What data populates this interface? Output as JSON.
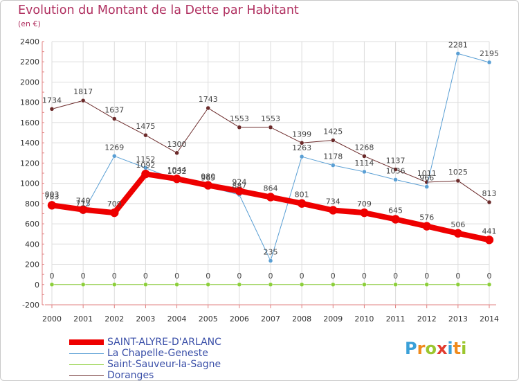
{
  "title": "Evolution du Montant de la Dette par Habitant",
  "subtitle": "(en €)",
  "logo": {
    "text": "Proxiti",
    "colors": [
      "#3aa0d8",
      "#f08a1c",
      "#9bc62e",
      "#e23b2e",
      "#3aa0d8",
      "#f08a1c",
      "#9bc62e"
    ]
  },
  "chart_data": {
    "type": "line",
    "x": [
      "2000",
      "2001",
      "2002",
      "2003",
      "2004",
      "2005",
      "2006",
      "2007",
      "2008",
      "2009",
      "2010",
      "2011",
      "2012",
      "2013",
      "2014"
    ],
    "ylim": [
      -200,
      2400
    ],
    "yticks": [
      -200,
      0,
      200,
      400,
      600,
      800,
      1000,
      1200,
      1400,
      1600,
      1800,
      2000,
      2200,
      2400
    ],
    "ytick_labels": [
      "-200",
      "0",
      "200",
      "400",
      "600",
      "800",
      "1000",
      "1200",
      "1400",
      "1600",
      "1800",
      "2000",
      "2200",
      "2400"
    ],
    "grid": true,
    "legend_position": "bottom-left",
    "series": [
      {
        "name": "Doranges",
        "color": "#6b2a2a",
        "width": 1,
        "marker": 3,
        "values": [
          1734,
          1817,
          1637,
          1475,
          1300,
          1743,
          1553,
          1553,
          1399,
          1425,
          1268,
          1137,
          1011,
          1025,
          813
        ],
        "labels": [
          "1734",
          "1817",
          "1637",
          "1475",
          "1300",
          "1743",
          "1553",
          "1553",
          "1399",
          "1425",
          "1268",
          "1137",
          "1011",
          "1025",
          "813"
        ]
      },
      {
        "name": "La Chapelle-Geneste",
        "color": "#5a9fd4",
        "width": 1,
        "marker": 3,
        "values": [
          803,
          713,
          1269,
          1152,
          1032,
          965,
          887,
          235,
          1263,
          1178,
          1114,
          1036,
          966,
          2281,
          2195
        ],
        "labels": [
          "803",
          "713",
          "1269",
          "1152",
          "1032",
          "965",
          "887",
          "235",
          "1263",
          "1178",
          "1114",
          "1036",
          "966",
          "2281",
          "2195"
        ]
      },
      {
        "name": "Saint-Sauveur-la-Sagne",
        "color": "#8ccf3a",
        "width": 1,
        "marker": 3,
        "values": [
          0,
          0,
          0,
          0,
          0,
          0,
          0,
          0,
          0,
          0,
          0,
          0,
          0,
          0,
          0
        ],
        "labels": [
          "0",
          "0",
          "0",
          "0",
          "0",
          "0",
          "0",
          "0",
          "0",
          "0",
          "0",
          "0",
          "0",
          "0",
          "0"
        ]
      },
      {
        "name": "SAINT-ALYRE-D'ARLANC",
        "color": "#ee0000",
        "width": 8,
        "marker": 6,
        "values": [
          783,
          740,
          709,
          1092,
          1044,
          980,
          924,
          864,
          801,
          734,
          709,
          645,
          576,
          506,
          441
        ],
        "labels": [
          "783",
          "740",
          "709",
          "1092",
          "1044",
          "980",
          "924",
          "864",
          "801",
          "734",
          "709",
          "645",
          "576",
          "506",
          "441"
        ]
      }
    ],
    "legend": [
      {
        "name": "SAINT-ALYRE-D'ARLANC",
        "color": "#ee0000",
        "width": 8
      },
      {
        "name": "La Chapelle-Geneste",
        "color": "#5a9fd4",
        "width": 1
      },
      {
        "name": "Saint-Sauveur-la-Sagne",
        "color": "#8ccf3a",
        "width": 1
      },
      {
        "name": "Doranges",
        "color": "#6b2a2a",
        "width": 1
      }
    ]
  }
}
